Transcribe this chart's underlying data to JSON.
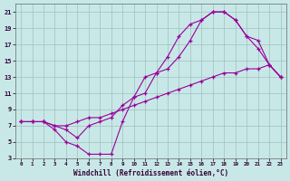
{
  "xlabel": "Windchill (Refroidissement éolien,°C)",
  "xlim": [
    -0.5,
    23.5
  ],
  "ylim": [
    3,
    22
  ],
  "xticks": [
    0,
    1,
    2,
    3,
    4,
    5,
    6,
    7,
    8,
    9,
    10,
    11,
    12,
    13,
    14,
    15,
    16,
    17,
    18,
    19,
    20,
    21,
    22,
    23
  ],
  "yticks": [
    3,
    5,
    7,
    9,
    11,
    13,
    15,
    17,
    19,
    21
  ],
  "bg_color": "#c8e8e8",
  "grid_color": "#a0c0c0",
  "line_color": "#990099",
  "line1_x": [
    0,
    1,
    2,
    3,
    4,
    5,
    6,
    7,
    8,
    9,
    10,
    11,
    12,
    13,
    14,
    15,
    16,
    17,
    18,
    19,
    20,
    21,
    22,
    23
  ],
  "line1_y": [
    7.5,
    7.5,
    7.5,
    6.5,
    5.0,
    4.5,
    3.5,
    3.5,
    3.5,
    7.5,
    10.5,
    13.0,
    13.5,
    14.0,
    15.5,
    17.5,
    20.0,
    21.0,
    21.0,
    20.0,
    18.0,
    16.5,
    14.5,
    13.0
  ],
  "line2_x": [
    0,
    1,
    2,
    3,
    4,
    5,
    6,
    7,
    8,
    9,
    10,
    11,
    12,
    13,
    14,
    15,
    16,
    17,
    18,
    19,
    20,
    21,
    22,
    23
  ],
  "line2_y": [
    7.5,
    7.5,
    7.5,
    7.0,
    7.0,
    7.5,
    8.0,
    8.0,
    8.5,
    9.0,
    9.5,
    10.0,
    10.5,
    11.0,
    11.5,
    12.0,
    12.5,
    13.0,
    13.5,
    13.5,
    14.0,
    14.0,
    14.5,
    13.0
  ],
  "line3_x": [
    0,
    1,
    2,
    3,
    4,
    5,
    6,
    7,
    8,
    9,
    10,
    11,
    12,
    13,
    14,
    15,
    16,
    17,
    18,
    19,
    20,
    21,
    22,
    23
  ],
  "line3_y": [
    7.5,
    7.5,
    7.5,
    7.0,
    6.5,
    5.5,
    7.0,
    7.5,
    8.0,
    9.5,
    10.5,
    11.0,
    13.5,
    15.5,
    18.0,
    19.5,
    20.0,
    21.0,
    21.0,
    20.0,
    18.0,
    17.5,
    14.5,
    13.0
  ]
}
